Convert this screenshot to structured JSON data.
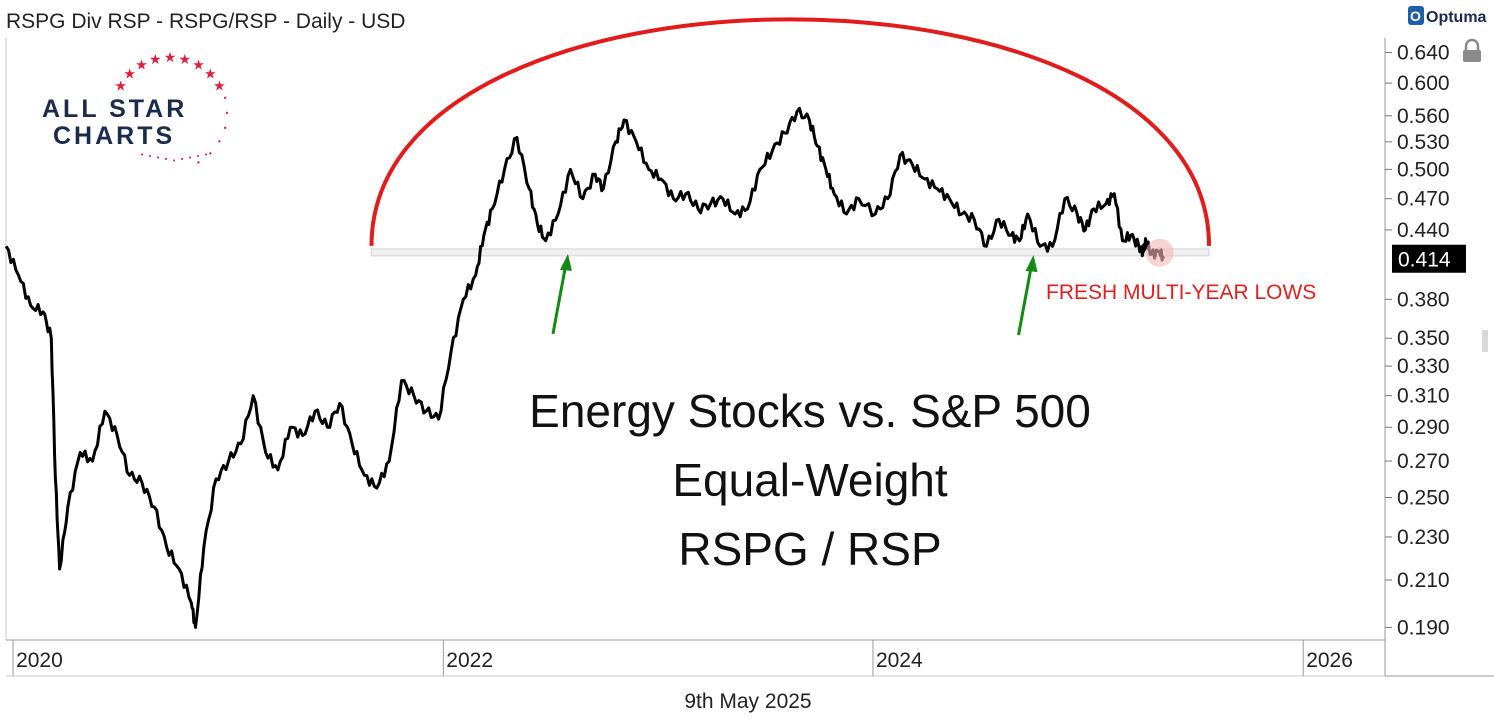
{
  "header": {
    "title": "RSPG Div RSP - RSPG/RSP - Daily - USD",
    "brand": "Optuma"
  },
  "logo": {
    "line1": "ALL STAR",
    "line2": "CHARTS"
  },
  "footer": {
    "date": "9th May 2025"
  },
  "annotations": {
    "title_lines": [
      "Energy Stocks vs. S&P 500",
      "Equal-Weight",
      "RSPG / RSP"
    ],
    "callout": "FRESH MULTI-YEAR LOWS"
  },
  "last_value_label": "0.414",
  "colors": {
    "arc": "#e21b1b",
    "arrow": "#138a13",
    "line": "#000000",
    "callout": "#e02020",
    "highlight": "#f4b6b6"
  },
  "chart_data": {
    "type": "line",
    "title": "RSPG Div RSP - RSPG/RSP - Daily - USD",
    "ylabel": "",
    "xlabel": "",
    "scale": "log",
    "ylim": [
      0.185,
      0.66
    ],
    "xlim": [
      "2019-12-20",
      "2026-05-20"
    ],
    "y_ticks": [
      "0.640",
      "0.600",
      "0.560",
      "0.530",
      "0.500",
      "0.470",
      "0.440",
      "0.380",
      "0.350",
      "0.330",
      "0.310",
      "0.290",
      "0.270",
      "0.250",
      "0.230",
      "0.210",
      "0.190"
    ],
    "x_ticks": [
      "2020",
      "2022",
      "2024",
      "2026"
    ],
    "support_level": 0.42,
    "last_value": 0.414,
    "series": [
      {
        "x": [
          "2019-12-20",
          "2020-01-10",
          "2020-01-31",
          "2020-02-21",
          "2020-03-06",
          "2020-03-13",
          "2020-03-20",
          "2020-04-03",
          "2020-04-24",
          "2020-05-15",
          "2020-06-05",
          "2020-06-26",
          "2020-07-17",
          "2020-08-07",
          "2020-08-28",
          "2020-09-18",
          "2020-10-09",
          "2020-10-30",
          "2020-11-06",
          "2020-11-20",
          "2020-12-11",
          "2021-01-01",
          "2021-01-22",
          "2021-02-12",
          "2021-03-05",
          "2021-03-26",
          "2021-04-16",
          "2021-05-07",
          "2021-05-28",
          "2021-06-18",
          "2021-07-09",
          "2021-07-30",
          "2021-08-20",
          "2021-09-10",
          "2021-10-01",
          "2021-10-22",
          "2021-11-12",
          "2021-12-03",
          "2021-12-24",
          "2022-01-14",
          "2022-02-04",
          "2022-02-25",
          "2022-03-11",
          "2022-03-25",
          "2022-04-15",
          "2022-05-06",
          "2022-05-27",
          "2022-06-10",
          "2022-06-24",
          "2022-07-15",
          "2022-08-05",
          "2022-08-26",
          "2022-09-16",
          "2022-09-30",
          "2022-10-21",
          "2022-11-04",
          "2022-11-25",
          "2022-12-16",
          "2023-01-06",
          "2023-01-27",
          "2023-02-17",
          "2023-03-10",
          "2023-03-31",
          "2023-04-21",
          "2023-05-12",
          "2023-06-02",
          "2023-06-23",
          "2023-07-14",
          "2023-08-04",
          "2023-08-25",
          "2023-09-15",
          "2023-09-29",
          "2023-10-13",
          "2023-10-27",
          "2023-11-17",
          "2023-12-08",
          "2024-01-05",
          "2024-01-26",
          "2024-02-16",
          "2024-03-08",
          "2024-03-29",
          "2024-04-19",
          "2024-05-10",
          "2024-05-31",
          "2024-06-21",
          "2024-07-12",
          "2024-08-02",
          "2024-08-23",
          "2024-09-06",
          "2024-09-20",
          "2024-10-11",
          "2024-11-01",
          "2024-11-22",
          "2024-12-13",
          "2024-12-27",
          "2025-01-10",
          "2025-01-31",
          "2025-02-14",
          "2025-02-28",
          "2025-03-14",
          "2025-03-28",
          "2025-04-04",
          "2025-04-09",
          "2025-04-18",
          "2025-05-02",
          "2025-05-09"
        ],
        "y": [
          0.425,
          0.4,
          0.375,
          0.37,
          0.35,
          0.26,
          0.215,
          0.245,
          0.275,
          0.27,
          0.3,
          0.285,
          0.262,
          0.258,
          0.245,
          0.225,
          0.215,
          0.2,
          0.19,
          0.225,
          0.26,
          0.27,
          0.28,
          0.31,
          0.275,
          0.265,
          0.29,
          0.285,
          0.3,
          0.29,
          0.305,
          0.28,
          0.262,
          0.255,
          0.27,
          0.32,
          0.31,
          0.3,
          0.295,
          0.34,
          0.38,
          0.4,
          0.435,
          0.46,
          0.5,
          0.535,
          0.48,
          0.445,
          0.43,
          0.455,
          0.5,
          0.47,
          0.495,
          0.48,
          0.53,
          0.555,
          0.53,
          0.5,
          0.49,
          0.47,
          0.475,
          0.46,
          0.465,
          0.47,
          0.455,
          0.46,
          0.5,
          0.52,
          0.54,
          0.565,
          0.555,
          0.525,
          0.5,
          0.475,
          0.455,
          0.47,
          0.455,
          0.47,
          0.515,
          0.505,
          0.49,
          0.48,
          0.47,
          0.455,
          0.45,
          0.425,
          0.45,
          0.435,
          0.43,
          0.455,
          0.425,
          0.425,
          0.47,
          0.455,
          0.44,
          0.46,
          0.465,
          0.475,
          0.43,
          0.435,
          0.425,
          0.42,
          0.43,
          0.418,
          0.42,
          0.414
        ]
      }
    ]
  }
}
